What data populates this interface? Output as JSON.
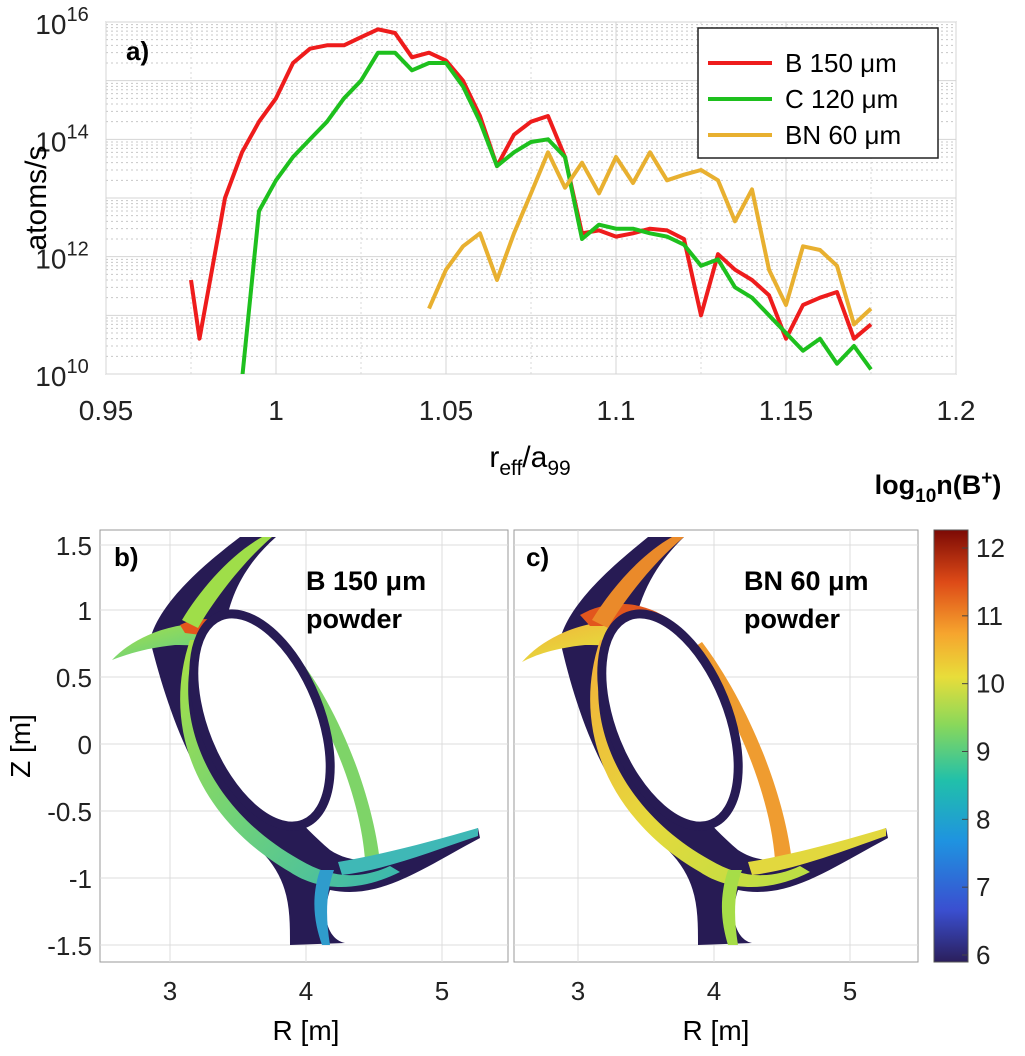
{
  "chart_data": [
    {
      "panel": "a)",
      "type": "line",
      "xlabel": {
        "base": "r",
        "sub1": "eff",
        "mid": "/a",
        "sub2": "99"
      },
      "ylabel": "atoms/s",
      "xlim": [
        0.95,
        1.2
      ],
      "ylim": [
        10000000000.0,
        1e+16
      ],
      "yscale": "log",
      "grid": true,
      "legend_position": "top-right",
      "x_ticks": [
        "0.95",
        "1",
        "1.05",
        "1.1",
        "1.15",
        "1.2"
      ],
      "x_tick_values": [
        0.95,
        1.0,
        1.05,
        1.1,
        1.15,
        1.2
      ],
      "y_ticks": [
        {
          "base": "10",
          "exp": "10",
          "value": 10000000000.0
        },
        {
          "base": "10",
          "exp": "12",
          "value": 1000000000000.0
        },
        {
          "base": "10",
          "exp": "14",
          "value": 100000000000000.0
        },
        {
          "base": "10",
          "exp": "16",
          "value": 1e+16
        }
      ],
      "series": [
        {
          "name": "B 150 μm",
          "color": "#ee1c1c",
          "points": [
            [
              0.975,
              400000000000.0
            ],
            [
              0.9775,
              40000000000.0
            ],
            [
              0.985,
              10000000000000.0
            ],
            [
              0.99,
              60000000000000.0
            ],
            [
              0.995,
              200000000000000.0
            ],
            [
              1.0,
              500000000000000.0
            ],
            [
              1.005,
              2000000000000000.0
            ],
            [
              1.01,
              3500000000000000.0
            ],
            [
              1.015,
              4000000000000000.0
            ],
            [
              1.02,
              4000000000000000.0
            ],
            [
              1.025,
              5500000000000000.0
            ],
            [
              1.03,
              7500000000000000.0
            ],
            [
              1.035,
              6500000000000000.0
            ],
            [
              1.04,
              2500000000000000.0
            ],
            [
              1.045,
              3000000000000000.0
            ],
            [
              1.05,
              2200000000000000.0
            ],
            [
              1.055,
              1000000000000000.0
            ],
            [
              1.06,
              250000000000000.0
            ],
            [
              1.065,
              35000000000000.0
            ],
            [
              1.07,
              120000000000000.0
            ],
            [
              1.075,
              200000000000000.0
            ],
            [
              1.08,
              250000000000000.0
            ],
            [
              1.085,
              50000000000000.0
            ],
            [
              1.09,
              2500000000000.0
            ],
            [
              1.095,
              2800000000000.0
            ],
            [
              1.1,
              2200000000000.0
            ],
            [
              1.105,
              2500000000000.0
            ],
            [
              1.11,
              3000000000000.0
            ],
            [
              1.115,
              2800000000000.0
            ],
            [
              1.12,
              2000000000000.0
            ],
            [
              1.125,
              100000000000.0
            ],
            [
              1.13,
              1100000000000.0
            ],
            [
              1.135,
              600000000000.0
            ],
            [
              1.14,
              400000000000.0
            ],
            [
              1.145,
              220000000000.0
            ],
            [
              1.15,
              40000000000.0
            ],
            [
              1.155,
              150000000000.0
            ],
            [
              1.16,
              200000000000.0
            ],
            [
              1.165,
              250000000000.0
            ],
            [
              1.17,
              40000000000.0
            ],
            [
              1.175,
              70000000000.0
            ]
          ]
        },
        {
          "name": "C 120 μm",
          "color": "#1ec01e",
          "points": [
            [
              0.99,
              8000000000.0
            ],
            [
              0.995,
              6000000000000.0
            ],
            [
              1.0,
              20000000000000.0
            ],
            [
              1.005,
              50000000000000.0
            ],
            [
              1.01,
              100000000000000.0
            ],
            [
              1.015,
              200000000000000.0
            ],
            [
              1.02,
              500000000000000.0
            ],
            [
              1.025,
              1000000000000000.0
            ],
            [
              1.03,
              3000000000000000.0
            ],
            [
              1.035,
              3000000000000000.0
            ],
            [
              1.04,
              1500000000000000.0
            ],
            [
              1.045,
              2000000000000000.0
            ],
            [
              1.05,
              2000000000000000.0
            ],
            [
              1.055,
              800000000000000.0
            ],
            [
              1.06,
              200000000000000.0
            ],
            [
              1.065,
              35000000000000.0
            ],
            [
              1.07,
              60000000000000.0
            ],
            [
              1.075,
              90000000000000.0
            ],
            [
              1.08,
              100000000000000.0
            ],
            [
              1.085,
              50000000000000.0
            ],
            [
              1.09,
              2000000000000.0
            ],
            [
              1.095,
              3500000000000.0
            ],
            [
              1.1,
              3000000000000.0
            ],
            [
              1.105,
              3000000000000.0
            ],
            [
              1.11,
              2500000000000.0
            ],
            [
              1.115,
              2200000000000.0
            ],
            [
              1.12,
              1600000000000.0
            ],
            [
              1.125,
              700000000000.0
            ],
            [
              1.13,
              900000000000.0
            ],
            [
              1.135,
              300000000000.0
            ],
            [
              1.14,
              200000000000.0
            ],
            [
              1.145,
              100000000000.0
            ],
            [
              1.15,
              50000000000.0
            ],
            [
              1.155,
              25000000000.0
            ],
            [
              1.16,
              40000000000.0
            ],
            [
              1.165,
              15000000000.0
            ],
            [
              1.17,
              30000000000.0
            ],
            [
              1.175,
              12000000000.0
            ]
          ]
        },
        {
          "name": "BN 60 μm",
          "color": "#e8b030",
          "points": [
            [
              1.045,
              130000000000.0
            ],
            [
              1.05,
              600000000000.0
            ],
            [
              1.055,
              1500000000000.0
            ],
            [
              1.06,
              2500000000000.0
            ],
            [
              1.065,
              400000000000.0
            ],
            [
              1.07,
              2500000000000.0
            ],
            [
              1.075,
              12000000000000.0
            ],
            [
              1.08,
              60000000000000.0
            ],
            [
              1.085,
              15000000000000.0
            ],
            [
              1.09,
              40000000000000.0
            ],
            [
              1.095,
              12000000000000.0
            ],
            [
              1.1,
              50000000000000.0
            ],
            [
              1.105,
              18000000000000.0
            ],
            [
              1.11,
              60000000000000.0
            ],
            [
              1.115,
              20000000000000.0
            ],
            [
              1.12,
              25000000000000.0
            ],
            [
              1.125,
              30000000000000.0
            ],
            [
              1.13,
              20000000000000.0
            ],
            [
              1.135,
              4000000000000.0
            ],
            [
              1.14,
              14000000000000.0
            ],
            [
              1.145,
              600000000000.0
            ],
            [
              1.15,
              150000000000.0
            ],
            [
              1.155,
              1500000000000.0
            ],
            [
              1.16,
              1300000000000.0
            ],
            [
              1.165,
              700000000000.0
            ],
            [
              1.17,
              70000000000.0
            ],
            [
              1.175,
              130000000000.0
            ]
          ]
        }
      ],
      "legend": [
        {
          "label": "B 150 μm",
          "color": "#ee1c1c"
        },
        {
          "label": "C 120 μm",
          "color": "#1ec01e"
        },
        {
          "label": "BN 60 μm",
          "color": "#e8b030"
        }
      ]
    },
    {
      "panel": "b)",
      "type": "heatmap",
      "annotation": [
        "B 150 μm",
        "powder"
      ],
      "xlabel": "R [m]",
      "ylabel": "Z [m]",
      "x_ticks": [
        "3",
        "4",
        "5"
      ],
      "y_ticks": [
        "1.5",
        "1",
        "0.5",
        "0",
        "-0.5",
        "-1",
        "-1.5"
      ],
      "xlim": [
        2.5,
        5.5
      ],
      "ylim": [
        -1.6,
        1.6
      ]
    },
    {
      "panel": "c)",
      "type": "heatmap",
      "annotation": [
        "BN 60 μm",
        "powder"
      ],
      "xlabel": "R [m]",
      "x_ticks": [
        "3",
        "4",
        "5"
      ],
      "xlim": [
        2.5,
        5.5
      ],
      "ylim": [
        -1.6,
        1.6
      ]
    }
  ],
  "colorbar": {
    "label": {
      "pre": "log",
      "sub": "10",
      "mid": "n(B",
      "sup": "+",
      "post": ")"
    },
    "ticks": [
      "12",
      "11",
      "10",
      "9",
      "8",
      "7",
      "6"
    ],
    "range": [
      6,
      12
    ],
    "colormap": "parula-like"
  }
}
